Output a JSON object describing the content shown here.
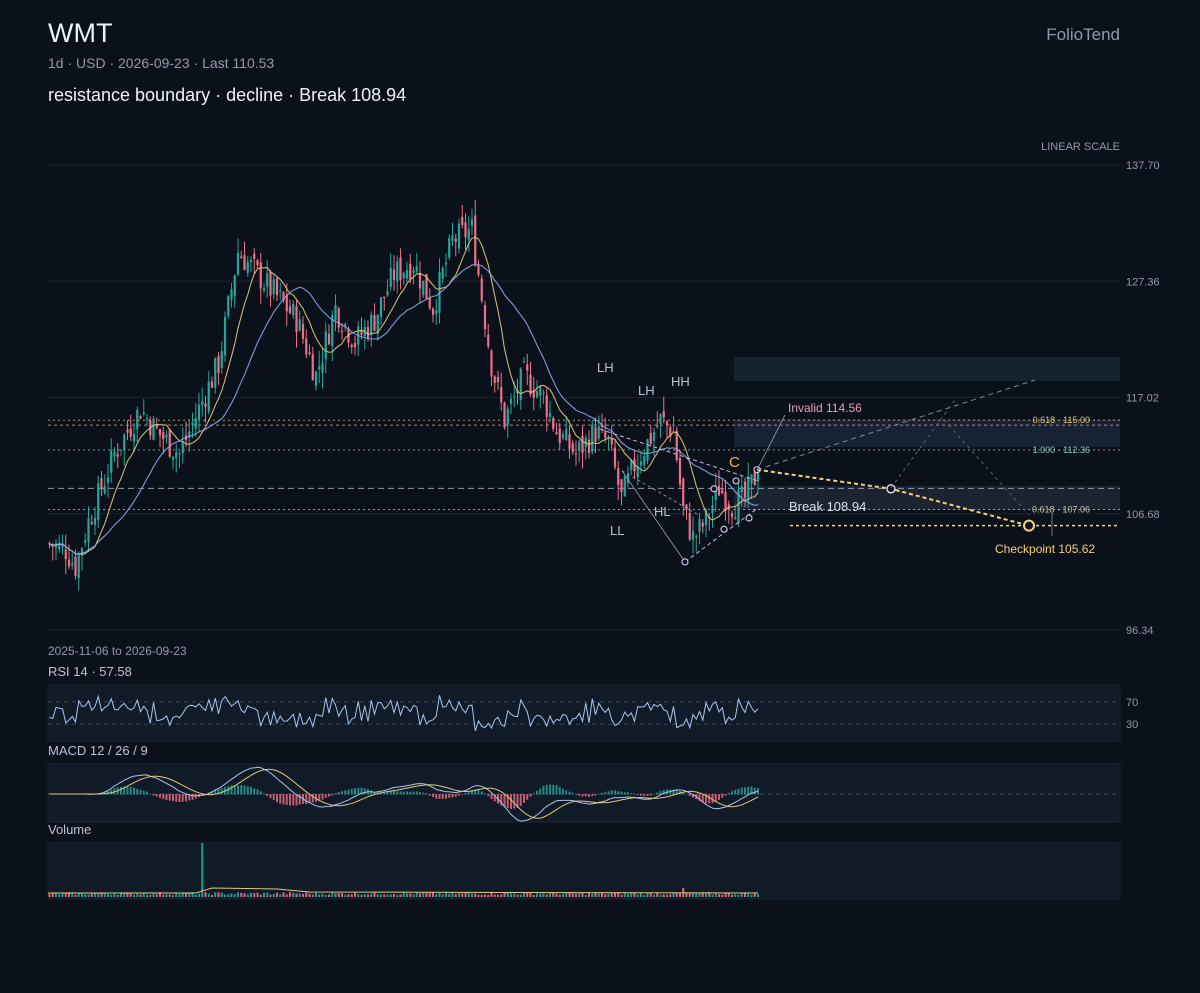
{
  "header": {
    "ticker": "WMT",
    "meta": "1d · USD · 2026-09-23 · Last 110.53",
    "headline": "resistance boundary · decline · Break 108.94",
    "brand": "FolioTend"
  },
  "colors": {
    "up": "#26a69a",
    "down": "#ef6f86",
    "ma_fast": "#e2c77d",
    "ma_slow": "#8fa8e6",
    "projection": "#f5d27a",
    "grid": "#1c2533"
  },
  "chart_data": {
    "type": "candlestick",
    "scale_label": "LINEAR SCALE",
    "date_range": "2025-11-06 to 2026-09-23",
    "ylim": [
      96.34,
      137.7
    ],
    "yticks": [
      "137.70",
      "127.36",
      "117.02",
      "106.68",
      "96.34"
    ],
    "anchors": [
      [
        0,
        104
      ],
      [
        5,
        103.5
      ],
      [
        8,
        102
      ],
      [
        12,
        106
      ],
      [
        20,
        112
      ],
      [
        28,
        116
      ],
      [
        33,
        114
      ],
      [
        40,
        112
      ],
      [
        46,
        116
      ],
      [
        52,
        120
      ],
      [
        58,
        130
      ],
      [
        64,
        128
      ],
      [
        70,
        126
      ],
      [
        76,
        124
      ],
      [
        82,
        119
      ],
      [
        88,
        125
      ],
      [
        94,
        122
      ],
      [
        100,
        124
      ],
      [
        106,
        128
      ],
      [
        112,
        129
      ],
      [
        118,
        125
      ],
      [
        124,
        131
      ],
      [
        130,
        132
      ],
      [
        136,
        120
      ],
      [
        140,
        115
      ],
      [
        146,
        119
      ],
      [
        152,
        117
      ],
      [
        156,
        114
      ],
      [
        162,
        112
      ],
      [
        168,
        114
      ],
      [
        172,
        113
      ],
      [
        176,
        108
      ],
      [
        180,
        111
      ],
      [
        184,
        113
      ],
      [
        188,
        115
      ],
      [
        192,
        114
      ],
      [
        195,
        107
      ],
      [
        198,
        104.5
      ],
      [
        202,
        106
      ],
      [
        206,
        109
      ],
      [
        210,
        107.5
      ],
      [
        214,
        108
      ],
      [
        218,
        110.5
      ]
    ],
    "levels": [
      {
        "value": 115.0,
        "label": "0.618 · 115.00",
        "color": "#e2c77d",
        "dash": "2,3"
      },
      {
        "value": 114.56,
        "label": "",
        "color": "#e8a0b0",
        "dash": "3,3"
      },
      {
        "value": 112.36,
        "label": "1.000 · 112.36",
        "color": "#8fd0c4",
        "dash": "2,3"
      },
      {
        "value": 108.94,
        "label": "",
        "color": "#b9c3d2",
        "dash": "6,4"
      },
      {
        "value": 107.06,
        "label": "0.618 · 107.06",
        "color": "#c5cbb0",
        "dash": "2,3"
      }
    ],
    "annotations": {
      "invalid": "Invalid 114.56",
      "break": "Break 108.94",
      "checkpoint": "Checkpoint 105.62",
      "wave_c": "C",
      "swings": [
        "LH",
        "LH",
        "HH",
        "LL",
        "HL"
      ]
    },
    "rsi": {
      "label": "RSI 14 · 57.58",
      "upper": "70",
      "lower": "30",
      "last": 57.58
    },
    "macd": {
      "label": "MACD 12 / 26 / 9"
    },
    "volume": {
      "label": "Volume"
    }
  }
}
